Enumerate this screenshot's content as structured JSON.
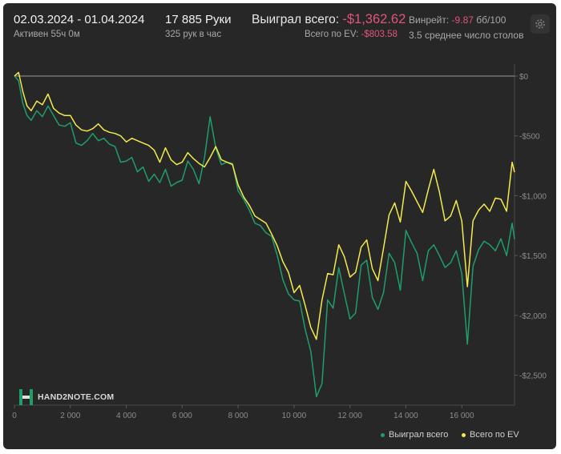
{
  "header": {
    "date_range": "02.03.2024 - 01.04.2024",
    "active": "Активен 55ч 0м",
    "hands": "17 885 Руки",
    "hands_per_hour": "325 рук в час",
    "won_label": "Выиграл всего:",
    "won_value": "-$1,362.62",
    "ev_label": "Всего по EV:",
    "ev_value": "-$803.58",
    "winrate_label": "Винрейт:",
    "winrate_value": "-9.87",
    "winrate_unit": "бб/100",
    "tables": "3.5 среднее число столов"
  },
  "logo": {
    "text": "HAND2NOTE.COM"
  },
  "colors": {
    "background": "#272727",
    "won": "#1f9e6a",
    "ev": "#f2ea4e",
    "zero_line": "#8a8a8a",
    "negative": "#e2557a"
  },
  "chart_data": {
    "type": "line",
    "title": "",
    "xlabel": "",
    "ylabel": "",
    "xlim": [
      0,
      17885
    ],
    "ylim": [
      -2750,
      100
    ],
    "x_ticks": [
      {
        "value": 0,
        "label": "0"
      },
      {
        "value": 2000,
        "label": "2 000"
      },
      {
        "value": 4000,
        "label": "4 000"
      },
      {
        "value": 6000,
        "label": "6 000"
      },
      {
        "value": 8000,
        "label": "8 000"
      },
      {
        "value": 10000,
        "label": "10 000"
      },
      {
        "value": 12000,
        "label": "12 000"
      },
      {
        "value": 14000,
        "label": "14 000"
      },
      {
        "value": 16000,
        "label": "16 000"
      }
    ],
    "y_ticks": [
      {
        "value": 0,
        "label": "$0"
      },
      {
        "value": -500,
        "label": "-$500"
      },
      {
        "value": -1000,
        "label": "-$1,000"
      },
      {
        "value": -1500,
        "label": "-$1,500"
      },
      {
        "value": -2000,
        "label": "-$2,000"
      },
      {
        "value": -2500,
        "label": "-$2,500"
      }
    ],
    "legend": "bottom-right",
    "series": [
      {
        "name": "Выиграл всего",
        "color": "#1f9e6a",
        "x": [
          0,
          150,
          300,
          450,
          600,
          800,
          1000,
          1200,
          1400,
          1600,
          1800,
          2000,
          2200,
          2400,
          2600,
          2800,
          3000,
          3200,
          3400,
          3600,
          3800,
          4000,
          4200,
          4400,
          4600,
          4800,
          5000,
          5200,
          5400,
          5600,
          5800,
          6000,
          6200,
          6400,
          6600,
          6800,
          7000,
          7200,
          7400,
          7600,
          7800,
          8000,
          8200,
          8400,
          8600,
          8800,
          9000,
          9200,
          9400,
          9600,
          9800,
          10000,
          10200,
          10400,
          10600,
          10800,
          11000,
          11200,
          11400,
          11600,
          11800,
          12000,
          12200,
          12400,
          12600,
          12800,
          13000,
          13200,
          13400,
          13600,
          13800,
          14000,
          14200,
          14400,
          14600,
          14800,
          15000,
          15200,
          15400,
          15600,
          15800,
          16000,
          16200,
          16400,
          16600,
          16800,
          17000,
          17200,
          17400,
          17600,
          17800,
          17885
        ],
        "values": [
          0,
          -40,
          -230,
          -330,
          -370,
          -290,
          -340,
          -250,
          -330,
          -410,
          -420,
          -390,
          -560,
          -580,
          -540,
          -480,
          -540,
          -520,
          -570,
          -590,
          -720,
          -710,
          -680,
          -800,
          -760,
          -880,
          -820,
          -890,
          -780,
          -920,
          -890,
          -870,
          -710,
          -780,
          -900,
          -680,
          -340,
          -600,
          -740,
          -720,
          -730,
          -960,
          -1030,
          -1120,
          -1230,
          -1250,
          -1310,
          -1340,
          -1500,
          -1700,
          -1820,
          -1870,
          -1880,
          -2120,
          -2300,
          -2680,
          -2570,
          -1870,
          -1940,
          -1600,
          -1820,
          -2030,
          -1980,
          -1580,
          -1540,
          -1850,
          -1950,
          -1810,
          -1480,
          -1560,
          -1790,
          -1290,
          -1390,
          -1480,
          -1710,
          -1460,
          -1410,
          -1500,
          -1600,
          -1560,
          -1460,
          -1650,
          -2240,
          -1590,
          -1450,
          -1380,
          -1410,
          -1460,
          -1360,
          -1500,
          -1230,
          -1363
        ]
      },
      {
        "name": "Всего по EV",
        "color": "#f2ea4e",
        "x": [
          0,
          150,
          300,
          450,
          600,
          800,
          1000,
          1200,
          1400,
          1600,
          1800,
          2000,
          2200,
          2400,
          2600,
          2800,
          3000,
          3200,
          3400,
          3600,
          3800,
          4000,
          4200,
          4400,
          4600,
          4800,
          5000,
          5200,
          5400,
          5600,
          5800,
          6000,
          6200,
          6400,
          6600,
          6800,
          7000,
          7200,
          7400,
          7600,
          7800,
          8000,
          8200,
          8400,
          8600,
          8800,
          9000,
          9200,
          9400,
          9600,
          9800,
          10000,
          10200,
          10400,
          10600,
          10800,
          11000,
          11200,
          11400,
          11600,
          11800,
          12000,
          12200,
          12400,
          12600,
          12800,
          13000,
          13200,
          13400,
          13600,
          13800,
          14000,
          14200,
          14400,
          14600,
          14800,
          15000,
          15200,
          15400,
          15600,
          15800,
          16000,
          16200,
          16400,
          16600,
          16800,
          17000,
          17200,
          17400,
          17600,
          17800,
          17885
        ],
        "values": [
          0,
          30,
          -130,
          -250,
          -290,
          -210,
          -240,
          -150,
          -270,
          -310,
          -330,
          -330,
          -410,
          -450,
          -460,
          -440,
          -400,
          -450,
          -470,
          -480,
          -500,
          -550,
          -520,
          -540,
          -560,
          -580,
          -620,
          -720,
          -600,
          -700,
          -740,
          -720,
          -640,
          -690,
          -730,
          -760,
          -680,
          -590,
          -700,
          -720,
          -740,
          -910,
          -1010,
          -1080,
          -1170,
          -1200,
          -1230,
          -1320,
          -1420,
          -1550,
          -1640,
          -1810,
          -1750,
          -1920,
          -2100,
          -2200,
          -1870,
          -1650,
          -1660,
          -1410,
          -1510,
          -1680,
          -1640,
          -1430,
          -1370,
          -1610,
          -1710,
          -1440,
          -1160,
          -1060,
          -1220,
          -880,
          -960,
          -1050,
          -1140,
          -950,
          -780,
          -970,
          -1210,
          -1170,
          -1040,
          -1210,
          -1760,
          -1210,
          -1120,
          -1070,
          -1130,
          -1020,
          -1030,
          -1130,
          -720,
          -804
        ]
      }
    ]
  }
}
